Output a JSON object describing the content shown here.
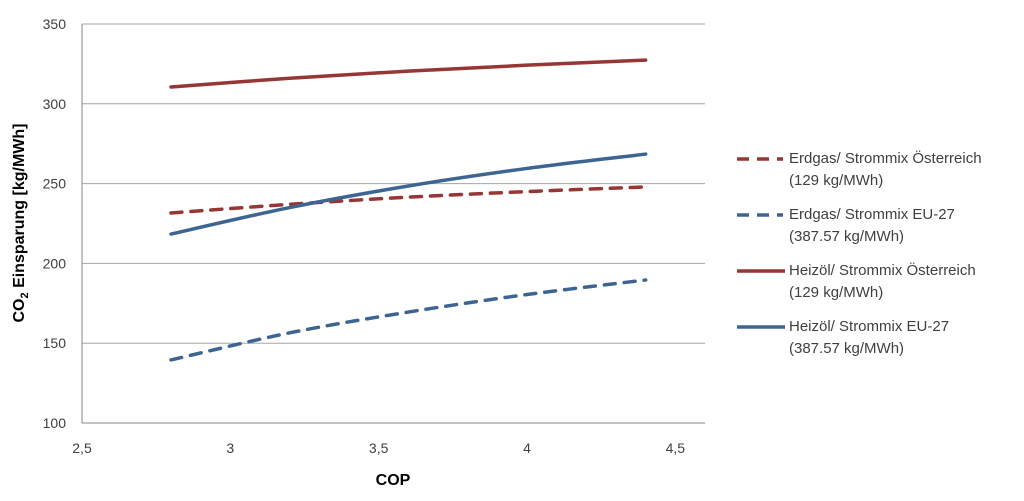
{
  "chart_data": {
    "type": "line",
    "title": "",
    "xlabel": "COP",
    "ylabel": "CO",
    "ylabel_sub": "2",
    "ylabel_rest": " Einsparung [kg/MWh]",
    "xlim": [
      2.5,
      4.6
    ],
    "ylim": [
      100,
      350
    ],
    "x_ticks": [
      2.5,
      3,
      3.5,
      4,
      4.5
    ],
    "x_tick_labels": [
      "2,5",
      "3",
      "3,5",
      "4",
      "4,5"
    ],
    "y_ticks": [
      100,
      150,
      200,
      250,
      300,
      350
    ],
    "y_tick_labels": [
      "100",
      "150",
      "200",
      "250",
      "300",
      "350"
    ],
    "grid": "horizontal",
    "legend_position": "right",
    "x": [
      2.8,
      3.2,
      3.6,
      4.0,
      4.4
    ],
    "series": [
      {
        "name": "Erdgas/ Strommix Österreich\n(129 kg/MWh)",
        "color": "#953735",
        "dash": true,
        "values": [
          231.6,
          237.0,
          241.5,
          245.0,
          247.9
        ]
      },
      {
        "name": "Erdgas/ Strommix EU-27\n(387.57 kg/MWh)",
        "color": "#3E6592",
        "dash": true,
        "values": [
          139.5,
          156.5,
          169.5,
          180.5,
          189.6
        ]
      },
      {
        "name": "Heizöl/ Strommix Österreich\n(129 kg/MWh)",
        "color": "#953735",
        "dash": false,
        "values": [
          310.5,
          316.0,
          320.5,
          324.2,
          327.4
        ]
      },
      {
        "name": "Heizöl/ Strommix EU-27\n(387.57 kg/MWh)",
        "color": "#3E6592",
        "dash": false,
        "values": [
          218.4,
          235.0,
          248.5,
          259.5,
          268.5
        ]
      }
    ]
  },
  "colors": {
    "grid": "#A6A6A6",
    "axis": "#868686"
  }
}
